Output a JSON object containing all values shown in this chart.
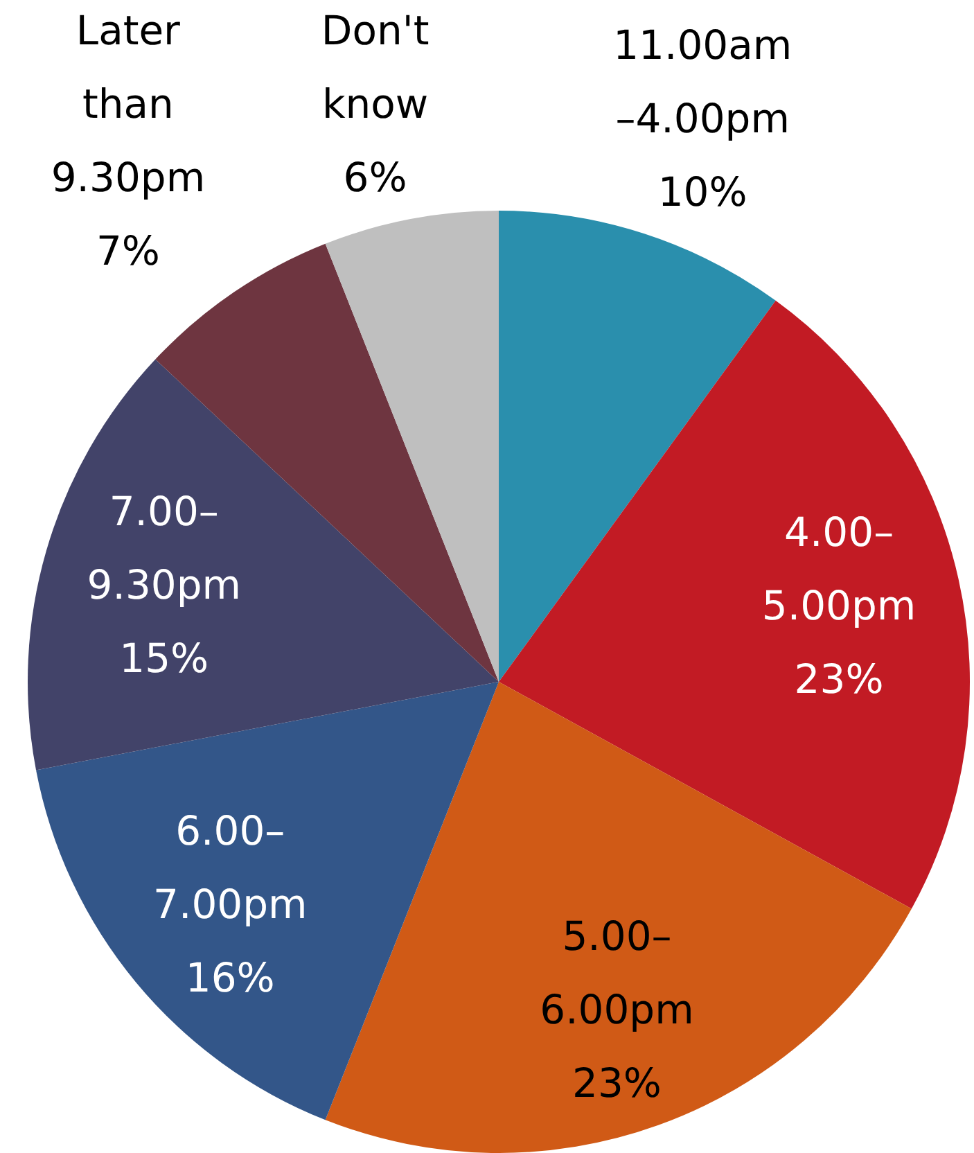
{
  "chart_data": {
    "type": "pie",
    "categories": [
      "11.00am\n–4.00pm",
      "4.00–\n5.00pm",
      "5.00–\n6.00pm",
      "6.00–\n7.00pm",
      "7.00–\n9.30pm",
      "Later\nthan\n9.30pm",
      "Don't\nknow"
    ],
    "values": [
      10,
      23,
      23,
      16,
      15,
      7,
      6
    ],
    "value_labels": [
      "10%",
      "23%",
      "23%",
      "16%",
      "15%",
      "7%",
      "6%"
    ],
    "colors": [
      "#2a8fad",
      "#c21b24",
      "#d05a16",
      "#335689",
      "#424369",
      "#6e3540",
      "#bfbfbf"
    ]
  }
}
